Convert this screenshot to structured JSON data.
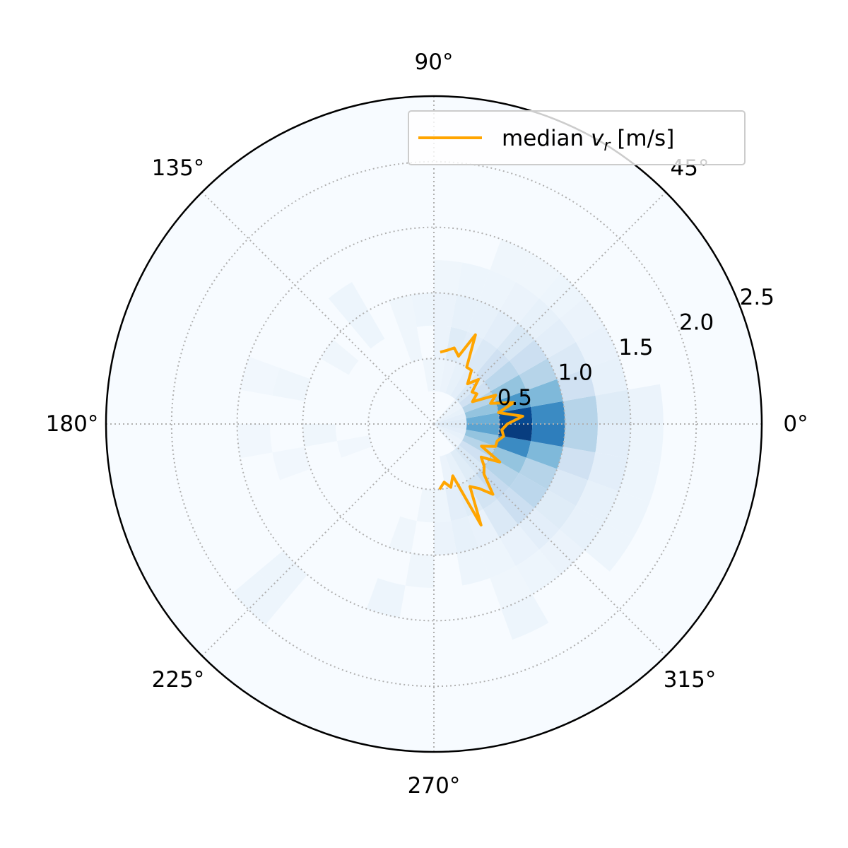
{
  "chart_data": {
    "type": "polar-histogram",
    "title": "",
    "theta_ticks": [
      {
        "deg": 0,
        "label": "0°"
      },
      {
        "deg": 45,
        "label": "45°"
      },
      {
        "deg": 90,
        "label": "90°"
      },
      {
        "deg": 135,
        "label": "135°"
      },
      {
        "deg": 180,
        "label": "180°"
      },
      {
        "deg": 225,
        "label": "225°"
      },
      {
        "deg": 270,
        "label": "270°"
      },
      {
        "deg": 315,
        "label": "315°"
      }
    ],
    "r_ticks": [
      {
        "value": 0.5,
        "label": "0.5"
      },
      {
        "value": 1.0,
        "label": "1.0"
      },
      {
        "value": 1.5,
        "label": "1.5"
      },
      {
        "value": 2.0,
        "label": "2.0"
      },
      {
        "value": 2.5,
        "label": "2.5"
      }
    ],
    "r_label_angle_deg": 22.5,
    "rlim": [
      0,
      2.5
    ],
    "grid": true,
    "colormap": "Blues",
    "background_color": "#f7fbff",
    "r_edges": [
      0,
      0.25,
      0.5,
      0.75,
      1.0,
      1.25,
      1.5,
      1.75,
      2.0,
      2.25,
      2.5
    ],
    "theta_bin_width_deg": 10,
    "histogram_bins": [
      {
        "theta": -85,
        "r_bin": 2,
        "v": 0.05
      },
      {
        "theta": -85,
        "r_bin": 3,
        "v": 0.06
      },
      {
        "theta": -75,
        "r_bin": 1,
        "v": 0.06
      },
      {
        "theta": -75,
        "r_bin": 2,
        "v": 0.1
      },
      {
        "theta": -75,
        "r_bin": 3,
        "v": 0.08
      },
      {
        "theta": -75,
        "r_bin": 4,
        "v": 0.05
      },
      {
        "theta": -65,
        "r_bin": 1,
        "v": 0.08
      },
      {
        "theta": -65,
        "r_bin": 2,
        "v": 0.12
      },
      {
        "theta": -65,
        "r_bin": 3,
        "v": 0.07
      },
      {
        "theta": -65,
        "r_bin": 4,
        "v": 0.05
      },
      {
        "theta": -65,
        "r_bin": 5,
        "v": 0.04
      },
      {
        "theta": -65,
        "r_bin": 6,
        "v": 0.05
      },
      {
        "theta": -55,
        "r_bin": 1,
        "v": 0.12
      },
      {
        "theta": -55,
        "r_bin": 2,
        "v": 0.18
      },
      {
        "theta": -55,
        "r_bin": 3,
        "v": 0.14
      },
      {
        "theta": -55,
        "r_bin": 4,
        "v": 0.07
      },
      {
        "theta": -55,
        "r_bin": 5,
        "v": 0.05
      },
      {
        "theta": -45,
        "r_bin": 0,
        "v": 0.05
      },
      {
        "theta": -45,
        "r_bin": 1,
        "v": 0.15
      },
      {
        "theta": -45,
        "r_bin": 2,
        "v": 0.25
      },
      {
        "theta": -45,
        "r_bin": 3,
        "v": 0.22
      },
      {
        "theta": -45,
        "r_bin": 4,
        "v": 0.1
      },
      {
        "theta": -45,
        "r_bin": 5,
        "v": 0.06
      },
      {
        "theta": -35,
        "r_bin": 0,
        "v": 0.06
      },
      {
        "theta": -35,
        "r_bin": 1,
        "v": 0.2
      },
      {
        "theta": -35,
        "r_bin": 2,
        "v": 0.3
      },
      {
        "theta": -35,
        "r_bin": 3,
        "v": 0.28
      },
      {
        "theta": -35,
        "r_bin": 4,
        "v": 0.12
      },
      {
        "theta": -35,
        "r_bin": 5,
        "v": 0.08
      },
      {
        "theta": -35,
        "r_bin": 6,
        "v": 0.05
      },
      {
        "theta": -25,
        "r_bin": 0,
        "v": 0.08
      },
      {
        "theta": -25,
        "r_bin": 1,
        "v": 0.3
      },
      {
        "theta": -25,
        "r_bin": 2,
        "v": 0.4
      },
      {
        "theta": -25,
        "r_bin": 3,
        "v": 0.3
      },
      {
        "theta": -25,
        "r_bin": 4,
        "v": 0.14
      },
      {
        "theta": -25,
        "r_bin": 5,
        "v": 0.08
      },
      {
        "theta": -25,
        "r_bin": 6,
        "v": 0.05
      },
      {
        "theta": -15,
        "r_bin": 0,
        "v": 0.1
      },
      {
        "theta": -15,
        "r_bin": 1,
        "v": 0.4
      },
      {
        "theta": -15,
        "r_bin": 2,
        "v": 0.65
      },
      {
        "theta": -15,
        "r_bin": 3,
        "v": 0.45
      },
      {
        "theta": -15,
        "r_bin": 4,
        "v": 0.2
      },
      {
        "theta": -15,
        "r_bin": 5,
        "v": 0.1
      },
      {
        "theta": -15,
        "r_bin": 6,
        "v": 0.05
      },
      {
        "theta": -5,
        "r_bin": 0,
        "v": 0.12
      },
      {
        "theta": -5,
        "r_bin": 1,
        "v": 0.55
      },
      {
        "theta": -5,
        "r_bin": 2,
        "v": 0.95
      },
      {
        "theta": -5,
        "r_bin": 3,
        "v": 0.7
      },
      {
        "theta": -5,
        "r_bin": 4,
        "v": 0.3
      },
      {
        "theta": -5,
        "r_bin": 5,
        "v": 0.1
      },
      {
        "theta": -5,
        "r_bin": 6,
        "v": 0.05
      },
      {
        "theta": 5,
        "r_bin": 0,
        "v": 0.12
      },
      {
        "theta": 5,
        "r_bin": 1,
        "v": 0.5
      },
      {
        "theta": 5,
        "r_bin": 2,
        "v": 0.9
      },
      {
        "theta": 5,
        "r_bin": 3,
        "v": 0.65
      },
      {
        "theta": 5,
        "r_bin": 4,
        "v": 0.3
      },
      {
        "theta": 5,
        "r_bin": 5,
        "v": 0.12
      },
      {
        "theta": 5,
        "r_bin": 6,
        "v": 0.06
      },
      {
        "theta": 15,
        "r_bin": 0,
        "v": 0.1
      },
      {
        "theta": 15,
        "r_bin": 1,
        "v": 0.4
      },
      {
        "theta": 15,
        "r_bin": 2,
        "v": 0.6
      },
      {
        "theta": 15,
        "r_bin": 3,
        "v": 0.45
      },
      {
        "theta": 15,
        "r_bin": 4,
        "v": 0.2
      },
      {
        "theta": 15,
        "r_bin": 5,
        "v": 0.08
      },
      {
        "theta": 25,
        "r_bin": 0,
        "v": 0.08
      },
      {
        "theta": 25,
        "r_bin": 1,
        "v": 0.3
      },
      {
        "theta": 25,
        "r_bin": 2,
        "v": 0.4
      },
      {
        "theta": 25,
        "r_bin": 3,
        "v": 0.3
      },
      {
        "theta": 25,
        "r_bin": 4,
        "v": 0.14
      },
      {
        "theta": 25,
        "r_bin": 5,
        "v": 0.07
      },
      {
        "theta": 35,
        "r_bin": 0,
        "v": 0.06
      },
      {
        "theta": 35,
        "r_bin": 1,
        "v": 0.2
      },
      {
        "theta": 35,
        "r_bin": 2,
        "v": 0.28
      },
      {
        "theta": 35,
        "r_bin": 3,
        "v": 0.22
      },
      {
        "theta": 35,
        "r_bin": 4,
        "v": 0.1
      },
      {
        "theta": 35,
        "r_bin": 5,
        "v": 0.06
      },
      {
        "theta": 45,
        "r_bin": 0,
        "v": 0.05
      },
      {
        "theta": 45,
        "r_bin": 1,
        "v": 0.15
      },
      {
        "theta": 45,
        "r_bin": 2,
        "v": 0.2
      },
      {
        "theta": 45,
        "r_bin": 3,
        "v": 0.15
      },
      {
        "theta": 45,
        "r_bin": 4,
        "v": 0.08
      },
      {
        "theta": 45,
        "r_bin": 5,
        "v": 0.05
      },
      {
        "theta": 55,
        "r_bin": 1,
        "v": 0.1
      },
      {
        "theta": 55,
        "r_bin": 2,
        "v": 0.14
      },
      {
        "theta": 55,
        "r_bin": 3,
        "v": 0.1
      },
      {
        "theta": 55,
        "r_bin": 4,
        "v": 0.06
      },
      {
        "theta": 55,
        "r_bin": 5,
        "v": 0.04
      },
      {
        "theta": 65,
        "r_bin": 1,
        "v": 0.08
      },
      {
        "theta": 65,
        "r_bin": 2,
        "v": 0.1
      },
      {
        "theta": 65,
        "r_bin": 3,
        "v": 0.08
      },
      {
        "theta": 65,
        "r_bin": 4,
        "v": 0.05
      },
      {
        "theta": 65,
        "r_bin": 5,
        "v": 0.04
      },
      {
        "theta": 75,
        "r_bin": 1,
        "v": 0.06
      },
      {
        "theta": 75,
        "r_bin": 2,
        "v": 0.12
      },
      {
        "theta": 75,
        "r_bin": 3,
        "v": 0.08
      },
      {
        "theta": 75,
        "r_bin": 4,
        "v": 0.05
      },
      {
        "theta": 85,
        "r_bin": 1,
        "v": 0.05
      },
      {
        "theta": 85,
        "r_bin": 2,
        "v": 0.06
      },
      {
        "theta": 85,
        "r_bin": 3,
        "v": 0.06
      },
      {
        "theta": 85,
        "r_bin": 4,
        "v": 0.04
      },
      {
        "theta": 95,
        "r_bin": 1,
        "v": 0.04
      },
      {
        "theta": 95,
        "r_bin": 3,
        "v": 0.05
      },
      {
        "theta": 105,
        "r_bin": 2,
        "v": 0.04
      },
      {
        "theta": 105,
        "r_bin": 3,
        "v": 0.04
      },
      {
        "theta": 125,
        "r_bin": 3,
        "v": 0.05
      },
      {
        "theta": 125,
        "r_bin": 4,
        "v": 0.05
      },
      {
        "theta": 145,
        "r_bin": 3,
        "v": 0.04
      },
      {
        "theta": 165,
        "r_bin": 4,
        "v": 0.04
      },
      {
        "theta": 165,
        "r_bin": 5,
        "v": 0.03
      },
      {
        "theta": 185,
        "r_bin": 3,
        "v": 0.04
      },
      {
        "theta": 185,
        "r_bin": 5,
        "v": 0.03
      },
      {
        "theta": 195,
        "r_bin": 2,
        "v": 0.03
      },
      {
        "theta": 195,
        "r_bin": 4,
        "v": 0.03
      },
      {
        "theta": 225,
        "r_bin": 6,
        "v": 0.05
      },
      {
        "theta": 225,
        "r_bin": 7,
        "v": 0.05
      },
      {
        "theta": 255,
        "r_bin": 3,
        "v": 0.04
      },
      {
        "theta": 255,
        "r_bin": 5,
        "v": 0.05
      },
      {
        "theta": 265,
        "r_bin": 2,
        "v": 0.04
      },
      {
        "theta": 265,
        "r_bin": 4,
        "v": 0.04
      }
    ],
    "series": [
      {
        "name": "median v_r [m/s]",
        "color": "#ffa500",
        "theta_deg": [
          85,
          80,
          75,
          70,
          65,
          60,
          55,
          50,
          45,
          40,
          35,
          30,
          25,
          20,
          15,
          10,
          5,
          0,
          -5,
          -10,
          -15,
          -20,
          -25,
          -30,
          -35,
          -40,
          -45,
          -50,
          -55,
          -60,
          -65,
          -70,
          -75,
          -80,
          -85
        ],
        "r": [
          0.55,
          0.57,
          0.6,
          0.55,
          0.75,
          0.5,
          0.5,
          0.4,
          0.48,
          0.38,
          0.4,
          0.34,
          0.52,
          0.46,
          0.63,
          0.5,
          0.68,
          0.56,
          0.52,
          0.54,
          0.5,
          0.5,
          0.4,
          0.58,
          0.44,
          0.5,
          0.54,
          0.7,
          0.6,
          0.55,
          0.85,
          0.42,
          0.5,
          0.45,
          0.5
        ]
      }
    ],
    "legend": {
      "position": "upper-right",
      "label_text": "median ",
      "label_var": "v",
      "label_sub": "r",
      "label_units": " [m/s]"
    }
  }
}
